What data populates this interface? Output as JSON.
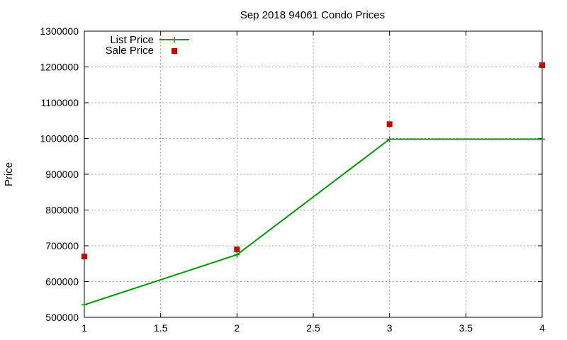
{
  "chart_data": {
    "type": "line",
    "title": "Sep 2018 94061 Condo Prices",
    "xlabel": "",
    "ylabel": "Price",
    "xlim": [
      1,
      4
    ],
    "ylim": [
      500000,
      1300000
    ],
    "x_ticks": [
      1,
      1.5,
      2,
      2.5,
      3,
      3.5,
      4
    ],
    "y_ticks": [
      500000,
      600000,
      700000,
      800000,
      900000,
      1000000,
      1100000,
      1200000,
      1300000
    ],
    "grid": true,
    "legend_position": "top-left",
    "series": [
      {
        "name": "List Price",
        "style": "line-with-plus-markers",
        "color": "#009900",
        "x": [
          1,
          2,
          3,
          4
        ],
        "y": [
          535000,
          675000,
          998000,
          998000
        ]
      },
      {
        "name": "Sale Price",
        "style": "square-markers",
        "color": "#cc0000",
        "x": [
          1,
          2,
          3,
          4
        ],
        "y": [
          670000,
          690000,
          1040000,
          1205000
        ]
      }
    ]
  }
}
